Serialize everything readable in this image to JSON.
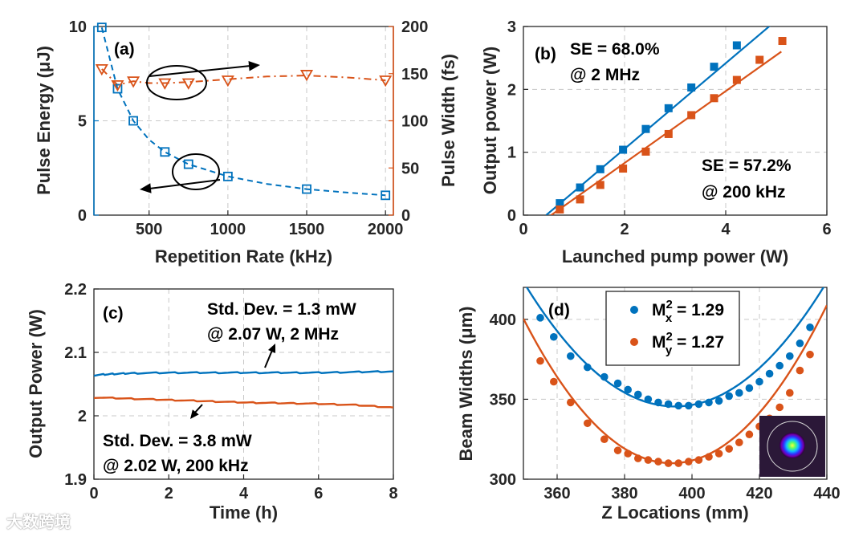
{
  "colors": {
    "blue": "#0072BD",
    "orange": "#D95319",
    "text": "#262626"
  },
  "watermark": "大数跨境",
  "chart_data": [
    {
      "id": "a",
      "type": "line",
      "panel_label": "(a)",
      "xlabel": "Repetition Rate (kHz)",
      "ylabel_left": "Pulse Energy (μJ)",
      "ylabel_right": "Pulse Width (fs)",
      "xlim": [
        150,
        2050
      ],
      "xticks": [
        "500",
        "1000",
        "1500",
        "2000"
      ],
      "ylim_left": [
        0,
        10
      ],
      "yticks_left": [
        "0",
        "5",
        "10"
      ],
      "ylim_right": [
        0,
        200
      ],
      "yticks_right": [
        "0",
        "50",
        "100",
        "150",
        "200"
      ],
      "grid": true,
      "series": [
        {
          "axis": "left",
          "marker": "square",
          "x": [
            200,
            300,
            400,
            600,
            750,
            1000,
            1500,
            2000
          ],
          "y": [
            9.95,
            6.7,
            5.0,
            3.35,
            2.7,
            2.05,
            1.38,
            1.05
          ]
        },
        {
          "axis": "right",
          "marker": "triangle-down",
          "x": [
            200,
            300,
            400,
            600,
            750,
            1000,
            1500,
            2000
          ],
          "y": [
            155,
            138,
            142,
            140,
            140,
            143,
            149,
            143
          ]
        }
      ],
      "trend_left": {
        "x": [
          200,
          300,
          400,
          500,
          600,
          750,
          1000,
          1250,
          1500,
          1750,
          2000
        ],
        "y": [
          9.95,
          6.7,
          5.0,
          4.0,
          3.35,
          2.7,
          2.05,
          1.65,
          1.38,
          1.2,
          1.05
        ]
      },
      "trend_right": {
        "x": [
          200,
          300,
          400,
          500,
          600,
          750,
          1000,
          1250,
          1500,
          1750,
          2000
        ],
        "y": [
          155,
          138,
          142,
          140,
          140,
          141,
          144,
          147,
          148,
          146,
          143
        ]
      }
    },
    {
      "id": "b",
      "type": "scatter",
      "panel_label": "(b)",
      "xlabel": "Launched pump power (W)",
      "ylabel": "Output power (W)",
      "xlim": [
        0,
        6
      ],
      "xticks": [
        "0",
        "2",
        "4",
        "6"
      ],
      "ylim": [
        0,
        3
      ],
      "yticks": [
        "0",
        "1",
        "2",
        "3"
      ],
      "grid": true,
      "annotations": [
        "SE = 68.0%",
        "@ 2 MHz",
        "SE = 57.2%",
        "@ 200 kHz"
      ],
      "series": [
        {
          "color": "blue",
          "x": [
            0.72,
            1.12,
            1.52,
            1.97,
            2.42,
            2.87,
            3.32,
            3.77,
            4.22
          ],
          "y": [
            0.19,
            0.44,
            0.73,
            1.04,
            1.37,
            1.7,
            2.03,
            2.36,
            2.7
          ]
        },
        {
          "color": "orange",
          "x": [
            0.72,
            1.12,
            1.52,
            1.97,
            2.42,
            2.87,
            3.32,
            3.77,
            4.22,
            4.67,
            5.12
          ],
          "y": [
            0.09,
            0.25,
            0.48,
            0.74,
            1.01,
            1.29,
            1.59,
            1.86,
            2.15,
            2.47,
            2.77
          ]
        }
      ],
      "fits": [
        {
          "color": "blue",
          "x": [
            0.45,
            5.05
          ],
          "y": [
            0.0,
            3.13
          ]
        },
        {
          "color": "orange",
          "x": [
            0.55,
            5.1
          ],
          "y": [
            0.0,
            2.6
          ]
        }
      ]
    },
    {
      "id": "c",
      "type": "line",
      "panel_label": "(c)",
      "xlabel": "Time (h)",
      "ylabel": "Output Power (W)",
      "xlim": [
        0,
        8
      ],
      "xticks": [
        "0",
        "2",
        "4",
        "6",
        "8"
      ],
      "ylim": [
        1.9,
        2.2
      ],
      "yticks": [
        "1.9",
        "2",
        "2.1",
        "2.2"
      ],
      "grid": true,
      "annotations": [
        "Std. Dev. = 1.3 mW",
        "@ 2.07 W, 2 MHz",
        "Std. Dev. = 3.8 mW",
        "@ 2.02 W, 200 kHz"
      ],
      "series": [
        {
          "color": "blue",
          "x": [
            0,
            0.5,
            1,
            2,
            3,
            4,
            5,
            6,
            7,
            8
          ],
          "y": [
            2.064,
            2.066,
            2.067,
            2.068,
            2.068,
            2.068,
            2.068,
            2.068,
            2.069,
            2.07
          ]
        },
        {
          "color": "orange",
          "x": [
            0,
            1,
            2,
            3,
            4,
            5,
            6,
            7,
            8
          ],
          "y": [
            2.029,
            2.027,
            2.025,
            2.023,
            2.021,
            2.02,
            2.019,
            2.017,
            2.013
          ]
        }
      ]
    },
    {
      "id": "d",
      "type": "scatter",
      "panel_label": "(d)",
      "xlabel": "Z Locations (mm)",
      "ylabel": "Beam Widths (μm)",
      "xlim": [
        350,
        440
      ],
      "xticks": [
        "360",
        "380",
        "400",
        "420",
        "440"
      ],
      "ylim": [
        300,
        420
      ],
      "yticks": [
        "300",
        "350",
        "400"
      ],
      "grid": true,
      "legend": [
        {
          "sym": "M",
          "sub": "x",
          "sup": "2",
          "value": " = 1.29",
          "color": "blue"
        },
        {
          "sym": "M",
          "sub": "y",
          "sup": "2",
          "value": " = 1.27",
          "color": "orange"
        }
      ],
      "series": [
        {
          "color": "blue",
          "x": [
            355,
            359,
            364,
            369,
            374,
            378,
            381,
            384,
            387,
            390,
            393,
            396,
            399,
            402,
            405,
            408,
            411,
            414,
            417,
            420,
            423,
            426,
            429,
            432,
            435
          ],
          "y": [
            401,
            389,
            377,
            370,
            364,
            360,
            356,
            353,
            350,
            348,
            347,
            346,
            346,
            347,
            348,
            349,
            352,
            354,
            357,
            361,
            366,
            371,
            377,
            385,
            395
          ]
        },
        {
          "color": "orange",
          "x": [
            355,
            359,
            364,
            369,
            374,
            378,
            381,
            384,
            387,
            390,
            393,
            396,
            399,
            402,
            405,
            408,
            411,
            414,
            417,
            420,
            423,
            426,
            429,
            432,
            435
          ],
          "y": [
            374,
            361,
            348,
            335,
            325,
            318,
            316,
            313,
            312,
            311,
            310,
            310,
            311,
            312,
            314,
            316,
            319,
            323,
            328,
            333,
            338,
            345,
            354,
            368,
            378
          ]
        }
      ],
      "fits": [
        {
          "color": "blue",
          "center": 395,
          "min": 345.5,
          "k": 0.0385
        },
        {
          "color": "orange",
          "center": 394,
          "min": 310,
          "k": 0.0467
        }
      ]
    }
  ]
}
